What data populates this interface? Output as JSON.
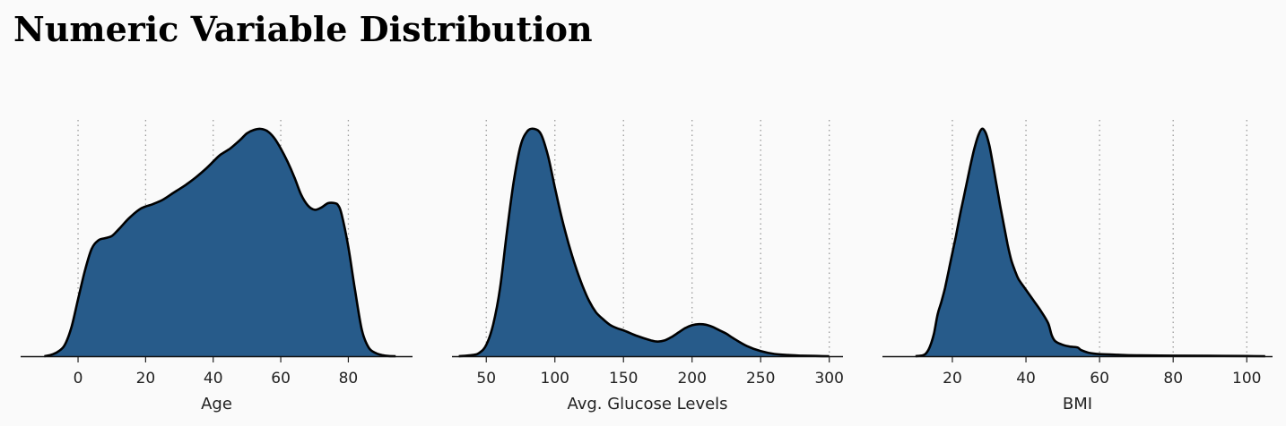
{
  "title": "Numeric Variable Distribution",
  "style": {
    "fill_color": "#275b8a",
    "line_color": "#000000",
    "grid_color": "#9a9a9a",
    "background": "#fafafa"
  },
  "chart_data": [
    {
      "type": "area",
      "xlabel": "Age",
      "xlim": [
        -17,
        99
      ],
      "xticks": [
        0,
        20,
        40,
        60,
        80
      ],
      "grid": "vertical dotted",
      "x": [
        -10,
        -8,
        -6,
        -4,
        -2,
        0,
        2,
        4,
        6,
        8,
        10,
        12,
        15,
        18,
        20,
        22,
        25,
        28,
        30,
        32,
        35,
        38,
        40,
        42,
        45,
        48,
        50,
        52,
        54,
        56,
        58,
        60,
        62,
        64,
        66,
        68,
        70,
        72,
        74,
        76,
        77,
        78,
        80,
        82,
        84,
        86,
        88,
        90,
        92,
        94
      ],
      "y": [
        0.0,
        0.06,
        0.2,
        0.5,
        1.3,
        2.6,
        3.9,
        4.9,
        5.3,
        5.4,
        5.5,
        5.8,
        6.3,
        6.7,
        6.85,
        6.95,
        7.15,
        7.45,
        7.65,
        7.85,
        8.2,
        8.6,
        8.9,
        9.2,
        9.5,
        9.9,
        10.2,
        10.35,
        10.4,
        10.3,
        10.0,
        9.5,
        8.9,
        8.2,
        7.4,
        6.9,
        6.7,
        6.8,
        7.0,
        7.0,
        6.9,
        6.5,
        5.0,
        3.0,
        1.2,
        0.4,
        0.15,
        0.05,
        0.01,
        0.0
      ]
    },
    {
      "type": "area",
      "xlabel": "Avg. Glucose Levels",
      "xlim": [
        25,
        310
      ],
      "xticks": [
        50,
        100,
        150,
        200,
        250,
        300
      ],
      "grid": "vertical dotted",
      "x": [
        30,
        40,
        45,
        50,
        55,
        60,
        65,
        70,
        75,
        80,
        85,
        90,
        95,
        100,
        105,
        110,
        115,
        120,
        125,
        130,
        135,
        140,
        145,
        150,
        160,
        170,
        175,
        180,
        185,
        190,
        195,
        200,
        205,
        210,
        215,
        220,
        225,
        230,
        240,
        250,
        260,
        270,
        280,
        290,
        300
      ],
      "y": [
        0.0,
        0.1,
        0.3,
        1.0,
        2.8,
        6.0,
        11.0,
        15.5,
        18.7,
        20.0,
        20.2,
        19.7,
        17.8,
        15.0,
        12.3,
        10.0,
        8.0,
        6.3,
        4.9,
        3.9,
        3.3,
        2.8,
        2.5,
        2.3,
        1.8,
        1.4,
        1.3,
        1.4,
        1.7,
        2.1,
        2.5,
        2.75,
        2.85,
        2.8,
        2.6,
        2.3,
        2.0,
        1.6,
        0.9,
        0.45,
        0.2,
        0.1,
        0.05,
        0.02,
        0.0
      ]
    },
    {
      "type": "area",
      "xlabel": "BMI",
      "xlim": [
        1,
        107
      ],
      "xticks": [
        20,
        40,
        60,
        80,
        100
      ],
      "grid": "vertical dotted",
      "x": [
        10,
        12,
        13,
        14,
        15,
        16,
        17,
        18,
        19,
        20,
        21,
        22,
        23,
        24,
        25,
        26,
        27,
        28,
        29,
        30,
        31,
        32,
        33,
        34,
        35,
        36,
        37,
        38,
        40,
        42,
        44,
        46,
        47,
        48,
        50,
        52,
        54,
        55,
        57,
        60,
        65,
        70,
        80,
        90,
        100,
        105
      ],
      "y": [
        0.0,
        0.05,
        0.2,
        0.6,
        1.3,
        2.4,
        3.1,
        3.9,
        4.9,
        5.9,
        6.9,
        8.0,
        9.0,
        10.0,
        11.0,
        11.9,
        12.6,
        13.0,
        12.8,
        12.1,
        11.0,
        9.8,
        8.6,
        7.5,
        6.4,
        5.5,
        4.9,
        4.4,
        3.8,
        3.2,
        2.6,
        1.9,
        1.2,
        0.85,
        0.65,
        0.55,
        0.5,
        0.35,
        0.2,
        0.12,
        0.08,
        0.05,
        0.03,
        0.02,
        0.01,
        0.0
      ]
    }
  ]
}
